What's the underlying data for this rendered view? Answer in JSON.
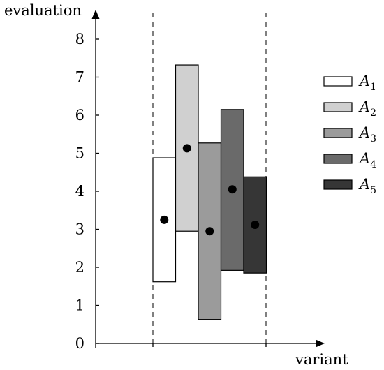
{
  "chart_data": {
    "type": "bar",
    "subtype": "floating-range",
    "xlabel": "variant",
    "ylabel": "evaluation",
    "ylim": [
      0,
      8.5
    ],
    "y_ticks": [
      0,
      1,
      2,
      3,
      4,
      5,
      6,
      7,
      8
    ],
    "grid": false,
    "legend_position": "right",
    "series": [
      {
        "name": "A",
        "sub": "1",
        "low": 1.62,
        "high": 4.88,
        "point": 3.25,
        "color": "#ffffff"
      },
      {
        "name": "A",
        "sub": "2",
        "low": 2.95,
        "high": 7.32,
        "point": 5.13,
        "color": "#d0d0d0"
      },
      {
        "name": "A",
        "sub": "3",
        "low": 0.63,
        "high": 5.27,
        "point": 2.95,
        "color": "#9b9b9b"
      },
      {
        "name": "A",
        "sub": "4",
        "low": 1.92,
        "high": 6.15,
        "point": 4.05,
        "color": "#6a6a6a"
      },
      {
        "name": "A",
        "sub": "5",
        "low": 1.85,
        "high": 4.38,
        "point": 3.12,
        "color": "#363636"
      }
    ]
  }
}
